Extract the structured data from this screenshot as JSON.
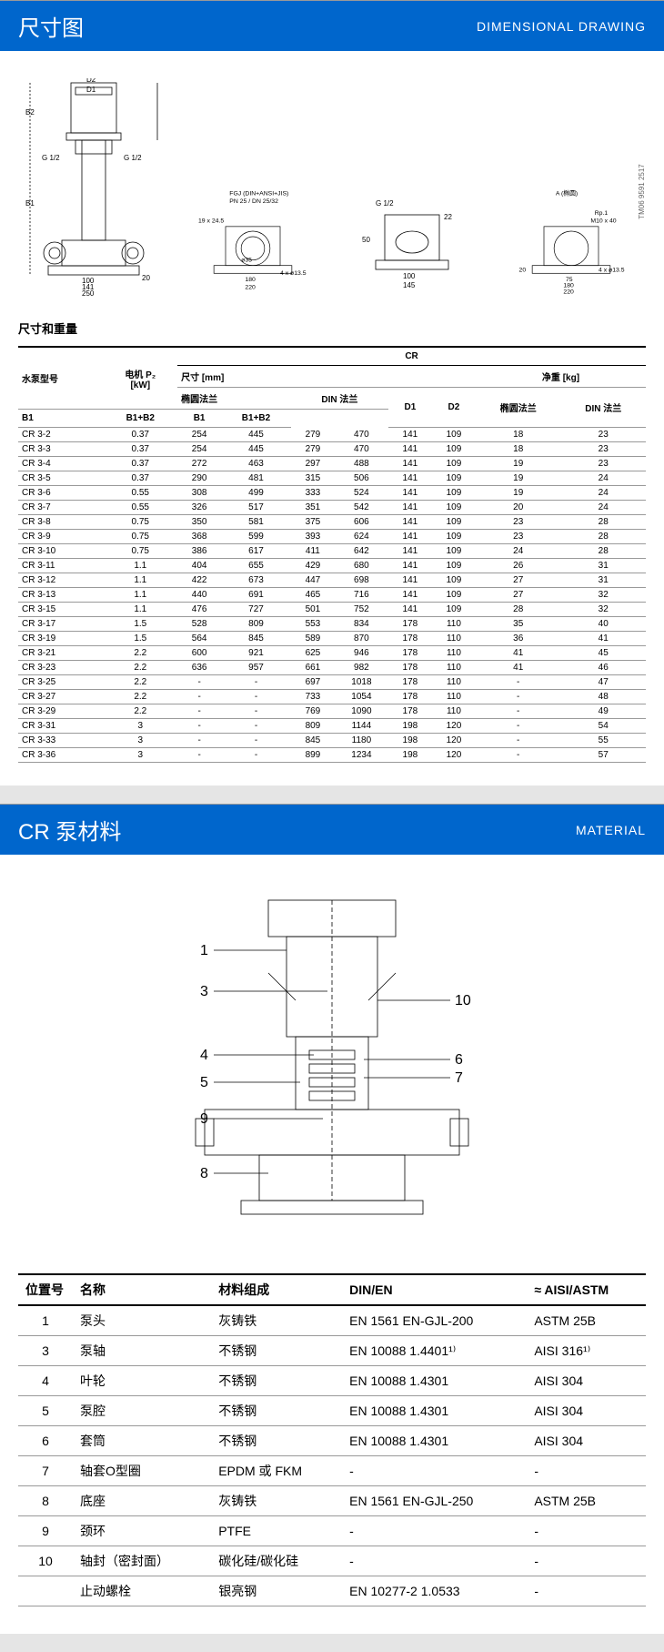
{
  "section1": {
    "title_cn": "尺寸图",
    "title_en": "DIMENSIONAL DRAWING",
    "drawing": {
      "labels": [
        "D2",
        "D1",
        "B2",
        "G 1/2",
        "G 1/2",
        "B1",
        "100",
        "141",
        "250",
        "20",
        "19 x 24.5",
        "FGJ (DIN+ANSI+JIS)",
        "PN 25 / DN 25/32",
        "ø35",
        "4 x ø13.5",
        "180",
        "220",
        "G 1/2",
        "22",
        "50",
        "100",
        "145",
        "A (椭圆)",
        "Rp.1",
        "M10 x 40",
        "4 x ø13.5",
        "75",
        "180",
        "20",
        "220"
      ],
      "watermark": "TM06 9591 2517"
    },
    "subheading": "尺寸和重量",
    "table": {
      "group_header": "CR",
      "col_groups": [
        "尺寸 [mm]",
        "净重 [kg]"
      ],
      "col_model": "水泵型号",
      "col_power": "电机 P₂\n[kW]",
      "col_flange_oval": "椭圆法兰",
      "col_flange_din": "DIN 法兰",
      "col_b1": "B1",
      "col_b1b2": "B1+B2",
      "col_d1": "D1",
      "col_d2": "D2",
      "rows": [
        {
          "m": "CR 3-2",
          "p": "0.37",
          "b1_o": "254",
          "b12_o": "445",
          "b1_d": "279",
          "b12_d": "470",
          "d1": "141",
          "d2": "109",
          "w_o": "18",
          "w_d": "23"
        },
        {
          "m": "CR 3-3",
          "p": "0.37",
          "b1_o": "254",
          "b12_o": "445",
          "b1_d": "279",
          "b12_d": "470",
          "d1": "141",
          "d2": "109",
          "w_o": "18",
          "w_d": "23"
        },
        {
          "m": "CR 3-4",
          "p": "0.37",
          "b1_o": "272",
          "b12_o": "463",
          "b1_d": "297",
          "b12_d": "488",
          "d1": "141",
          "d2": "109",
          "w_o": "19",
          "w_d": "23"
        },
        {
          "m": "CR 3-5",
          "p": "0.37",
          "b1_o": "290",
          "b12_o": "481",
          "b1_d": "315",
          "b12_d": "506",
          "d1": "141",
          "d2": "109",
          "w_o": "19",
          "w_d": "24"
        },
        {
          "m": "CR 3-6",
          "p": "0.55",
          "b1_o": "308",
          "b12_o": "499",
          "b1_d": "333",
          "b12_d": "524",
          "d1": "141",
          "d2": "109",
          "w_o": "19",
          "w_d": "24"
        },
        {
          "m": "CR 3-7",
          "p": "0.55",
          "b1_o": "326",
          "b12_o": "517",
          "b1_d": "351",
          "b12_d": "542",
          "d1": "141",
          "d2": "109",
          "w_o": "20",
          "w_d": "24"
        },
        {
          "m": "CR 3-8",
          "p": "0.75",
          "b1_o": "350",
          "b12_o": "581",
          "b1_d": "375",
          "b12_d": "606",
          "d1": "141",
          "d2": "109",
          "w_o": "23",
          "w_d": "28"
        },
        {
          "m": "CR 3-9",
          "p": "0.75",
          "b1_o": "368",
          "b12_o": "599",
          "b1_d": "393",
          "b12_d": "624",
          "d1": "141",
          "d2": "109",
          "w_o": "23",
          "w_d": "28"
        },
        {
          "m": "CR 3-10",
          "p": "0.75",
          "b1_o": "386",
          "b12_o": "617",
          "b1_d": "411",
          "b12_d": "642",
          "d1": "141",
          "d2": "109",
          "w_o": "24",
          "w_d": "28"
        },
        {
          "m": "CR 3-11",
          "p": "1.1",
          "b1_o": "404",
          "b12_o": "655",
          "b1_d": "429",
          "b12_d": "680",
          "d1": "141",
          "d2": "109",
          "w_o": "26",
          "w_d": "31"
        },
        {
          "m": "CR 3-12",
          "p": "1.1",
          "b1_o": "422",
          "b12_o": "673",
          "b1_d": "447",
          "b12_d": "698",
          "d1": "141",
          "d2": "109",
          "w_o": "27",
          "w_d": "31"
        },
        {
          "m": "CR 3-13",
          "p": "1.1",
          "b1_o": "440",
          "b12_o": "691",
          "b1_d": "465",
          "b12_d": "716",
          "d1": "141",
          "d2": "109",
          "w_o": "27",
          "w_d": "32"
        },
        {
          "m": "CR 3-15",
          "p": "1.1",
          "b1_o": "476",
          "b12_o": "727",
          "b1_d": "501",
          "b12_d": "752",
          "d1": "141",
          "d2": "109",
          "w_o": "28",
          "w_d": "32"
        },
        {
          "m": "CR 3-17",
          "p": "1.5",
          "b1_o": "528",
          "b12_o": "809",
          "b1_d": "553",
          "b12_d": "834",
          "d1": "178",
          "d2": "110",
          "w_o": "35",
          "w_d": "40"
        },
        {
          "m": "CR 3-19",
          "p": "1.5",
          "b1_o": "564",
          "b12_o": "845",
          "b1_d": "589",
          "b12_d": "870",
          "d1": "178",
          "d2": "110",
          "w_o": "36",
          "w_d": "41"
        },
        {
          "m": "CR 3-21",
          "p": "2.2",
          "b1_o": "600",
          "b12_o": "921",
          "b1_d": "625",
          "b12_d": "946",
          "d1": "178",
          "d2": "110",
          "w_o": "41",
          "w_d": "45"
        },
        {
          "m": "CR 3-23",
          "p": "2.2",
          "b1_o": "636",
          "b12_o": "957",
          "b1_d": "661",
          "b12_d": "982",
          "d1": "178",
          "d2": "110",
          "w_o": "41",
          "w_d": "46"
        },
        {
          "m": "CR 3-25",
          "p": "2.2",
          "b1_o": "-",
          "b12_o": "-",
          "b1_d": "697",
          "b12_d": "1018",
          "d1": "178",
          "d2": "110",
          "w_o": "-",
          "w_d": "47"
        },
        {
          "m": "CR 3-27",
          "p": "2.2",
          "b1_o": "-",
          "b12_o": "-",
          "b1_d": "733",
          "b12_d": "1054",
          "d1": "178",
          "d2": "110",
          "w_o": "-",
          "w_d": "48"
        },
        {
          "m": "CR 3-29",
          "p": "2.2",
          "b1_o": "-",
          "b12_o": "-",
          "b1_d": "769",
          "b12_d": "1090",
          "d1": "178",
          "d2": "110",
          "w_o": "-",
          "w_d": "49"
        },
        {
          "m": "CR 3-31",
          "p": "3",
          "b1_o": "-",
          "b12_o": "-",
          "b1_d": "809",
          "b12_d": "1144",
          "d1": "198",
          "d2": "120",
          "w_o": "-",
          "w_d": "54"
        },
        {
          "m": "CR 3-33",
          "p": "3",
          "b1_o": "-",
          "b12_o": "-",
          "b1_d": "845",
          "b12_d": "1180",
          "d1": "198",
          "d2": "120",
          "w_o": "-",
          "w_d": "55"
        },
        {
          "m": "CR 3-36",
          "p": "3",
          "b1_o": "-",
          "b12_o": "-",
          "b1_d": "899",
          "b12_d": "1234",
          "d1": "198",
          "d2": "120",
          "w_o": "-",
          "w_d": "57"
        }
      ]
    }
  },
  "section2": {
    "title_cn": "CR 泵材料",
    "title_en": "MATERIAL",
    "callouts": [
      "1",
      "3",
      "4",
      "5",
      "9",
      "8",
      "10",
      "6",
      "7"
    ],
    "table": {
      "col_pos": "位置号",
      "col_name": "名称",
      "col_mat": "材料组成",
      "col_dinen": "DIN/EN",
      "col_aisi": "≈ AISI/ASTM",
      "rows": [
        {
          "pos": "1",
          "name": "泵头",
          "mat": "灰铸铁",
          "din": "EN 1561 EN-GJL-200",
          "aisi": "ASTM 25B"
        },
        {
          "pos": "3",
          "name": "泵轴",
          "mat": "不锈钢",
          "din": "EN 10088 1.4401¹⁾",
          "aisi": "AISI 316¹⁾"
        },
        {
          "pos": "4",
          "name": "叶轮",
          "mat": "不锈钢",
          "din": "EN 10088 1.4301",
          "aisi": "AISI 304"
        },
        {
          "pos": "5",
          "name": "泵腔",
          "mat": "不锈钢",
          "din": "EN 10088 1.4301",
          "aisi": "AISI 304"
        },
        {
          "pos": "6",
          "name": "套筒",
          "mat": "不锈钢",
          "din": "EN 10088 1.4301",
          "aisi": "AISI 304"
        },
        {
          "pos": "7",
          "name": "轴套O型圈",
          "mat": "EPDM 或 FKM",
          "din": "-",
          "aisi": "-"
        },
        {
          "pos": "8",
          "name": "底座",
          "mat": "灰铸铁",
          "din": "EN 1561 EN-GJL-250",
          "aisi": "ASTM 25B"
        },
        {
          "pos": "9",
          "name": "颈环",
          "mat": "PTFE",
          "din": "-",
          "aisi": "-"
        },
        {
          "pos": "10",
          "name": "轴封（密封面）",
          "mat": "碳化硅/碳化硅",
          "din": "-",
          "aisi": "-"
        },
        {
          "pos": "",
          "name": "止动螺栓",
          "mat": "银亮钢",
          "din": "EN 10277-2 1.0533",
          "aisi": "-"
        }
      ]
    }
  },
  "styling": {
    "header_bg": "#0066cc",
    "body_bg": "#e5e5e5",
    "page_bg": "#ffffff",
    "border_color": "#999999",
    "text_color": "#000000"
  }
}
